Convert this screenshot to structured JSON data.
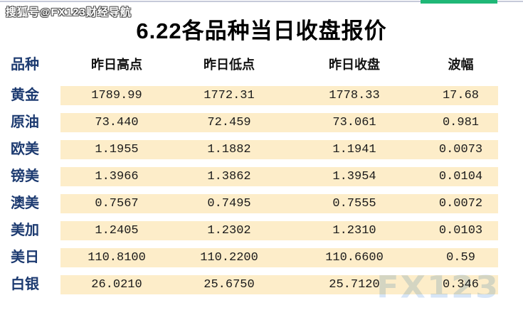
{
  "watermark_top": "搜狐号@FX123财经导航",
  "title": "6.22各品种当日收盘报价",
  "brand_watermark": "FX123",
  "colors": {
    "row_band": "#fdedc9",
    "label_navy": "#1c3a70",
    "value_text": "#1a1a1a",
    "green_bar": "#1fb877",
    "top_hairline": "#c6cad9",
    "fx_watermark_blue": "#c9dcf5"
  },
  "table": {
    "columns": {
      "variety": "品种",
      "high": "昨日高点",
      "low": "昨日低点",
      "close": "昨日收盘",
      "range": "波幅"
    },
    "rows": [
      {
        "name": "黄金",
        "high": "1789.99",
        "low": "1772.31",
        "close": "1778.33",
        "range": "17.68"
      },
      {
        "name": "原油",
        "high": "73.440",
        "low": "72.459",
        "close": "73.061",
        "range": "0.981"
      },
      {
        "name": "欧美",
        "high": "1.1955",
        "low": "1.1882",
        "close": "1.1941",
        "range": "0.0073"
      },
      {
        "name": "镑美",
        "high": "1.3966",
        "low": "1.3862",
        "close": "1.3954",
        "range": "0.0104"
      },
      {
        "name": "澳美",
        "high": "0.7567",
        "low": "0.7495",
        "close": "0.7555",
        "range": "0.0072"
      },
      {
        "name": "美加",
        "high": "1.2405",
        "low": "1.2302",
        "close": "1.2310",
        "range": "0.0103"
      },
      {
        "name": "美日",
        "high": "110.8100",
        "low": "110.2200",
        "close": "110.6600",
        "range": "0.59"
      },
      {
        "name": "白银",
        "high": "26.0210",
        "low": "25.6750",
        "close": "25.7120",
        "range": "0.346"
      }
    ]
  },
  "chart_data": {
    "type": "table",
    "title": "6.22各品种当日收盘报价",
    "columns": [
      "品种",
      "昨日高点",
      "昨日低点",
      "昨日收盘",
      "波幅"
    ],
    "rows": [
      [
        "黄金",
        "1789.99",
        "1772.31",
        "1778.33",
        "17.68"
      ],
      [
        "原油",
        "73.440",
        "72.459",
        "73.061",
        "0.981"
      ],
      [
        "欧美",
        "1.1955",
        "1.1882",
        "1.1941",
        "0.0073"
      ],
      [
        "镑美",
        "1.3966",
        "1.3862",
        "1.3954",
        "0.0104"
      ],
      [
        "澳美",
        "0.7567",
        "0.7495",
        "0.7555",
        "0.0072"
      ],
      [
        "美加",
        "1.2405",
        "1.2302",
        "1.2310",
        "0.0103"
      ],
      [
        "美日",
        "110.8100",
        "110.2200",
        "110.6600",
        "0.59"
      ],
      [
        "白银",
        "26.0210",
        "25.6750",
        "25.7120",
        "0.346"
      ]
    ]
  }
}
